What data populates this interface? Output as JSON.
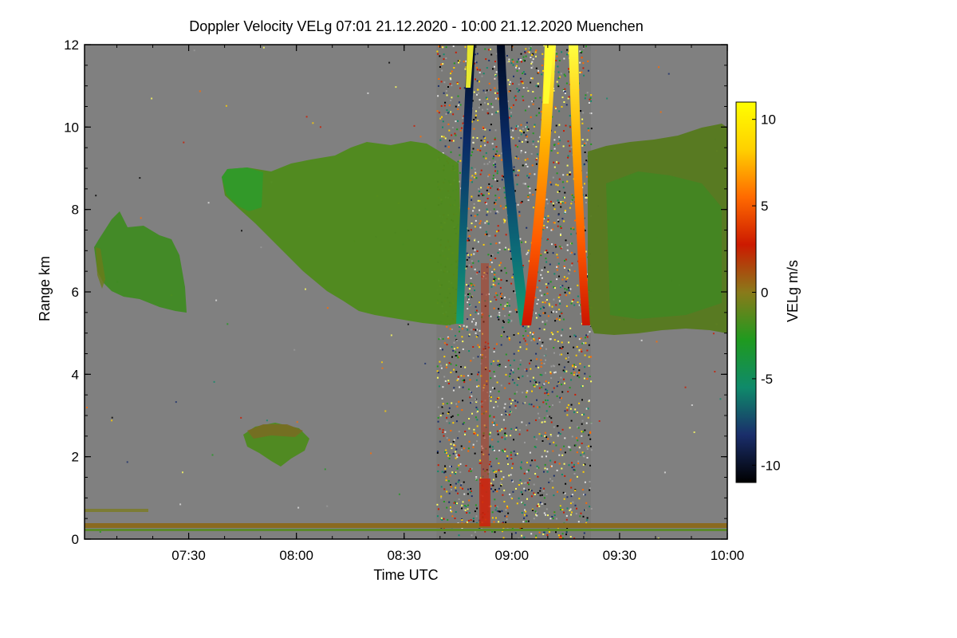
{
  "chart_data": {
    "type": "heatmap",
    "title": "Doppler Velocity VELg   07:01 21.12.2020 - 10:00 21.12.2020 Muenchen",
    "xlabel": "Time UTC",
    "ylabel": "Range km",
    "x_range": [
      "07:01",
      "10:00"
    ],
    "y_range": [
      0,
      12
    ],
    "x_ticks": [
      "07:30",
      "08:00",
      "08:30",
      "09:00",
      "09:30",
      "10:00"
    ],
    "y_ticks": [
      "0",
      "2",
      "4",
      "6",
      "8",
      "10",
      "12"
    ],
    "colorbar": {
      "label": "VELg m/s",
      "range": [
        -11,
        11
      ],
      "ticks": [
        "10",
        "5",
        "0",
        "-5",
        "-10"
      ],
      "colors": [
        "#000000",
        "#1a2e6b",
        "#0f8a6a",
        "#1f9a1f",
        "#8a7a1a",
        "#cc1a00",
        "#ff6a00",
        "#ffd000",
        "#ffff00"
      ]
    },
    "background_color": "#808080",
    "features": [
      {
        "name": "echo-early-low",
        "time_range": [
          "07:06",
          "07:28"
        ],
        "range_km": [
          5.5,
          8.1
        ],
        "velocity_ms": -1
      },
      {
        "name": "echo-low-cloud",
        "time_range": [
          "07:46",
          "08:02"
        ],
        "range_km": [
          1.8,
          2.8
        ],
        "velocity_ms": 0
      },
      {
        "name": "echo-main-cloud",
        "time_range": [
          "07:40",
          "08:50"
        ],
        "range_km": [
          5.2,
          9.3
        ],
        "velocity_ms": -2
      },
      {
        "name": "echo-late-cloud",
        "time_range": [
          "09:22",
          "10:00"
        ],
        "range_km": [
          5.0,
          9.8
        ],
        "velocity_ms": -1
      },
      {
        "name": "noise-band",
        "time_range": [
          "08:39",
          "09:22"
        ],
        "range_km": [
          0,
          12
        ],
        "velocity_ms": 0
      },
      {
        "name": "scan-arc-negative",
        "time_range": [
          "08:46",
          "09:03"
        ],
        "range_km": [
          5.2,
          12
        ],
        "velocity_ms": -9
      },
      {
        "name": "scan-arc-positive",
        "time_range": [
          "09:03",
          "09:21"
        ],
        "range_km": [
          5.2,
          12
        ],
        "velocity_ms": 9
      },
      {
        "name": "ground-clutter",
        "time_range": [
          "07:01",
          "10:00"
        ],
        "range_km": [
          0,
          0.3
        ],
        "velocity_ms": 1
      }
    ]
  }
}
